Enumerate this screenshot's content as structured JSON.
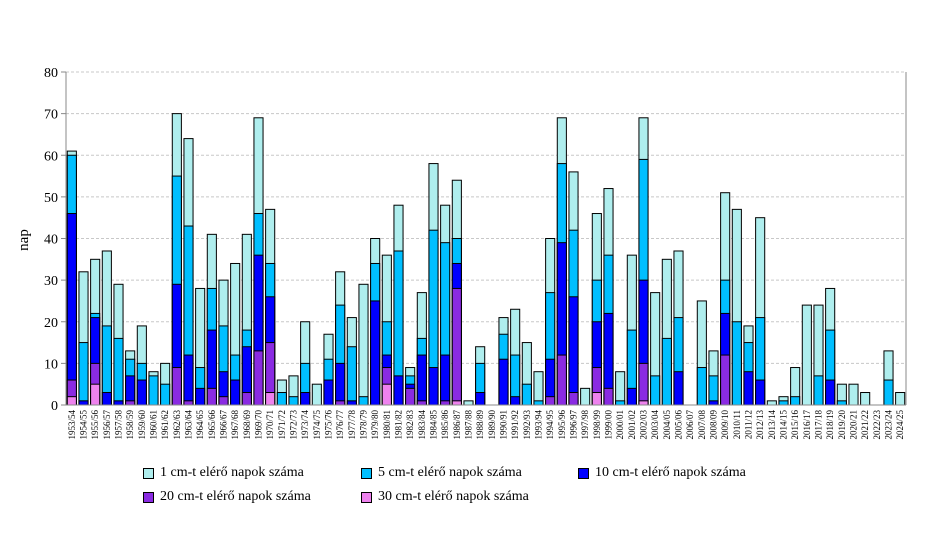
{
  "chart_data": {
    "type": "bar",
    "mode": "overlapping",
    "ylabel": "nap",
    "xlabel": "",
    "ylim": [
      0,
      80
    ],
    "yticks": [
      0,
      10,
      20,
      30,
      40,
      50,
      60,
      70,
      80
    ],
    "grid": true,
    "legend_position": "bottom",
    "categories": [
      "1953/54",
      "1954/55",
      "1955/56",
      "1956/57",
      "1957/58",
      "1958/59",
      "1959/60",
      "1960/61",
      "1961/62",
      "1962/63",
      "1963/64",
      "1964/65",
      "1965/66",
      "1966/67",
      "1967/68",
      "1968/69",
      "1969/70",
      "1970/71",
      "1971/72",
      "1972/73",
      "1973/74",
      "1974/75",
      "1975/76",
      "1976/77",
      "1977/78",
      "1978/79",
      "1979/80",
      "1980/81",
      "1981/82",
      "1982/83",
      "1983/84",
      "1984/85",
      "1985/86",
      "1986/87",
      "1987/88",
      "1988/89",
      "1989/90",
      "1990/91",
      "1991/92",
      "1992/93",
      "1993/94",
      "1994/95",
      "1995/96",
      "1996/97",
      "1997/98",
      "1998/99",
      "1999/00",
      "2000/01",
      "2001/02",
      "2002/03",
      "2003/04",
      "2004/05",
      "2005/06",
      "2006/07",
      "2007/08",
      "2008/09",
      "2009/10",
      "2010/11",
      "2011/12",
      "2012/13",
      "2013/14",
      "2014/15",
      "2015/16",
      "2016/17",
      "2017/18",
      "2018/19",
      "2019/20",
      "2020/21",
      "2021/22",
      "2022/23",
      "2023/24",
      "2024/25"
    ],
    "series": [
      {
        "name": "1 cm-t elérő napok száma",
        "color": "#AFEEEE",
        "values": [
          61,
          32,
          35,
          37,
          29,
          13,
          19,
          8,
          10,
          70,
          64,
          28,
          41,
          30,
          34,
          41,
          69,
          47,
          6,
          7,
          20,
          5,
          17,
          32,
          21,
          29,
          40,
          36,
          48,
          9,
          27,
          58,
          48,
          54,
          1,
          14,
          0,
          21,
          23,
          15,
          8,
          40,
          69,
          56,
          4,
          46,
          52,
          8,
          36,
          69,
          27,
          35,
          37,
          0,
          25,
          13,
          51,
          47,
          19,
          45,
          1,
          2,
          9,
          24,
          24,
          28,
          5,
          5,
          3,
          0,
          13,
          3
        ]
      },
      {
        "name": "5 cm-t elérő napok száma",
        "color": "#00BFFF",
        "values": [
          60,
          15,
          22,
          19,
          16,
          11,
          10,
          7,
          5,
          55,
          43,
          9,
          28,
          19,
          12,
          18,
          46,
          34,
          3,
          2,
          10,
          0,
          11,
          24,
          14,
          2,
          34,
          20,
          37,
          7,
          16,
          42,
          39,
          40,
          0,
          10,
          0,
          17,
          12,
          5,
          1,
          27,
          58,
          42,
          0,
          30,
          36,
          1,
          18,
          59,
          7,
          16,
          21,
          0,
          9,
          7,
          30,
          20,
          15,
          21,
          0,
          1,
          2,
          0,
          7,
          18,
          1,
          0,
          0,
          0,
          6,
          0
        ]
      },
      {
        "name": "10 cm-t elérő napok száma",
        "color": "#0000FF",
        "values": [
          46,
          1,
          21,
          3,
          1,
          7,
          6,
          0,
          0,
          29,
          12,
          4,
          18,
          8,
          6,
          14,
          36,
          26,
          0,
          0,
          3,
          0,
          6,
          10,
          1,
          0,
          25,
          12,
          7,
          5,
          12,
          9,
          12,
          34,
          0,
          3,
          0,
          11,
          2,
          0,
          0,
          11,
          39,
          26,
          0,
          20,
          22,
          0,
          4,
          30,
          0,
          0,
          8,
          0,
          0,
          1,
          22,
          0,
          8,
          6,
          0,
          0,
          0,
          0,
          0,
          6,
          0,
          0,
          0,
          0,
          0,
          0
        ]
      },
      {
        "name": "20 cm-t elérő napok száma",
        "color": "#8A2BE2",
        "values": [
          6,
          0,
          10,
          0,
          0,
          1,
          0,
          0,
          0,
          9,
          1,
          0,
          4,
          2,
          0,
          3,
          13,
          15,
          0,
          0,
          0,
          0,
          0,
          1,
          0,
          0,
          0,
          9,
          0,
          4,
          1,
          0,
          1,
          28,
          0,
          0,
          0,
          0,
          0,
          0,
          0,
          2,
          12,
          3,
          0,
          9,
          4,
          0,
          0,
          10,
          0,
          0,
          0,
          0,
          0,
          0,
          12,
          0,
          0,
          0,
          0,
          0,
          0,
          0,
          0,
          0,
          0,
          0,
          0,
          0,
          0,
          0
        ]
      },
      {
        "name": "30 cm-t elérő napok száma",
        "color": "#EE82EE",
        "values": [
          2,
          0,
          5,
          0,
          0,
          0,
          0,
          0,
          0,
          0,
          0,
          0,
          0,
          0,
          0,
          0,
          0,
          3,
          0,
          0,
          0,
          0,
          0,
          0,
          0,
          0,
          0,
          5,
          0,
          0,
          0,
          0,
          0,
          1,
          0,
          0,
          0,
          0,
          0,
          0,
          0,
          0,
          0,
          0,
          0,
          3,
          0,
          0,
          0,
          1,
          0,
          0,
          0,
          0,
          0,
          0,
          0,
          0,
          0,
          0,
          0,
          0,
          0,
          0,
          0,
          0,
          0,
          0,
          0,
          0,
          0,
          0
        ]
      }
    ]
  }
}
